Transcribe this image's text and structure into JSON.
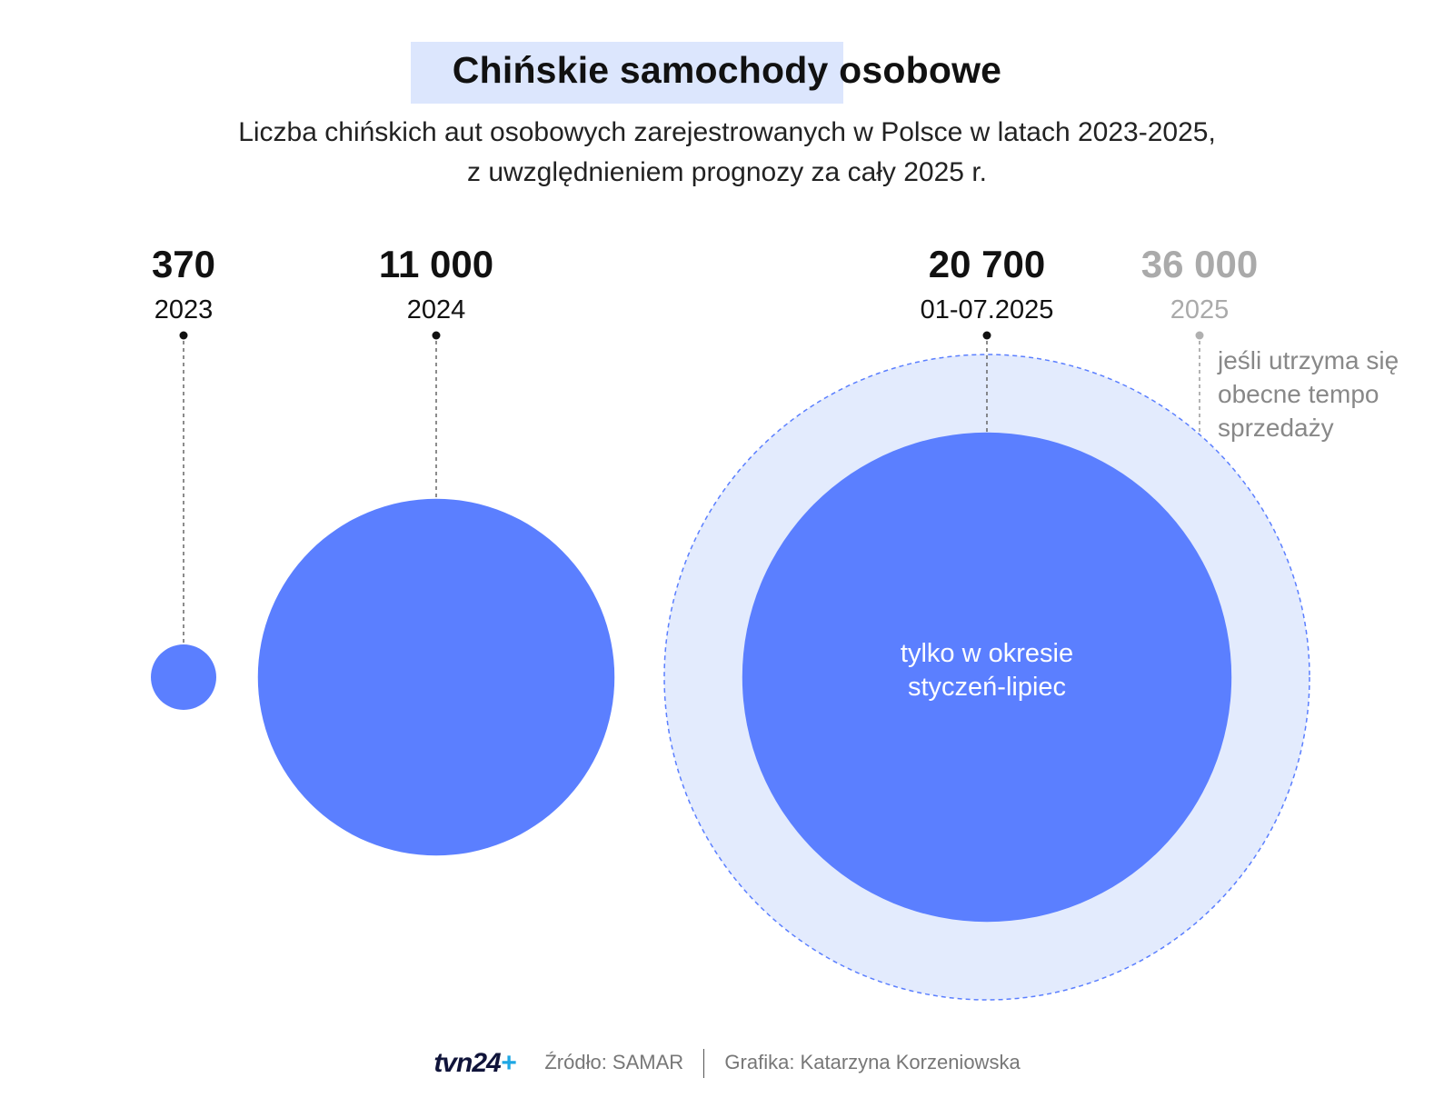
{
  "title": "Chińskie samochody osobowe",
  "subtitle_lines": [
    "Liczba chińskich aut osobowych zarejestrowanych w Polsce w latach 2023-2025,",
    "z uwzględnieniem prognozy za cały 2025 r."
  ],
  "chart_data": {
    "type": "bubble",
    "series": [
      {
        "label": "2023",
        "value_label": "370",
        "value": 370,
        "style": "actual"
      },
      {
        "label": "2024",
        "value_label": "11 000",
        "value": 11000,
        "style": "actual"
      },
      {
        "label": "01-07.2025",
        "value_label": "20 700",
        "value": 20700,
        "style": "actual",
        "note": "tylko w okresie styczeń-lipiec"
      },
      {
        "label": "2025",
        "value_label": "36 000",
        "value": 36000,
        "style": "forecast",
        "note": "jeśli utrzyma się obecne tempo sprzedaży"
      }
    ],
    "colors": {
      "actual": "#5b7fff",
      "forecast_fill": "#e3ebfd",
      "forecast_stroke": "#5b7fff",
      "forecast_text": "#aaaaaa",
      "note_text": "#888888"
    }
  },
  "footer": {
    "logo": "tvn24",
    "logo_plus": "+",
    "source": "Źródło: SAMAR",
    "credit": "Grafika: Katarzyna Korzeniowska"
  }
}
